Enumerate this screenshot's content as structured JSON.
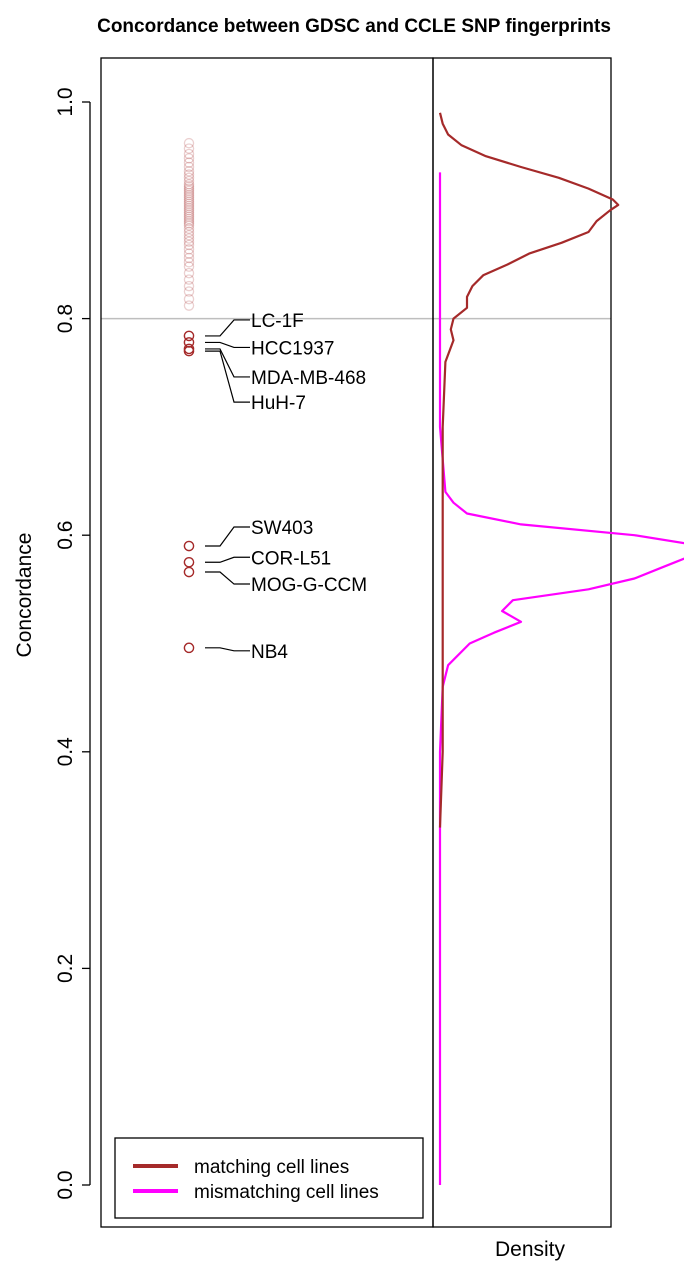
{
  "chart_data": {
    "type": "scatter",
    "title": "Concordance between GDSC and CCLE SNP fingerprints",
    "ylabel": "Concordance",
    "density_xlabel": "Density",
    "ylim": [
      -0.04,
      1.04
    ],
    "yticks": [
      0.0,
      0.2,
      0.4,
      0.6,
      0.8,
      1.0
    ],
    "threshold": 0.8,
    "colors": {
      "matching": "#a52a2a",
      "mismatching": "#ff00ff",
      "threshold": "#bebebe",
      "axis": "#000000"
    },
    "legend": {
      "position": "bottom-left",
      "entries": [
        {
          "key": "matching",
          "label": "matching cell lines"
        },
        {
          "key": "mismatching",
          "label": "mismatching cell lines"
        }
      ]
    },
    "matching_points": [
      0.812,
      0.818,
      0.825,
      0.83,
      0.836,
      0.842,
      0.848,
      0.852,
      0.856,
      0.86,
      0.864,
      0.868,
      0.871,
      0.874,
      0.877,
      0.88,
      0.883,
      0.886,
      0.888,
      0.89,
      0.892,
      0.894,
      0.896,
      0.898,
      0.9,
      0.902,
      0.904,
      0.906,
      0.908,
      0.91,
      0.912,
      0.914,
      0.916,
      0.918,
      0.92,
      0.922,
      0.924,
      0.927,
      0.93,
      0.933,
      0.936,
      0.94,
      0.944,
      0.948,
      0.952,
      0.957,
      0.962
    ],
    "labeled_points": [
      {
        "name": "LC-1F",
        "y": 0.784
      },
      {
        "name": "HCC1937",
        "y": 0.778
      },
      {
        "name": "MDA-MB-468",
        "y": 0.772
      },
      {
        "name": "HuH-7",
        "y": 0.77
      },
      {
        "name": "SW403",
        "y": 0.59
      },
      {
        "name": "COR-L51",
        "y": 0.575
      },
      {
        "name": "MOG-G-CCM",
        "y": 0.566
      },
      {
        "name": "NB4",
        "y": 0.496
      }
    ],
    "density_matching": {
      "y": [
        0.33,
        0.4,
        0.5,
        0.6,
        0.7,
        0.76,
        0.78,
        0.79,
        0.8,
        0.81,
        0.82,
        0.83,
        0.84,
        0.85,
        0.86,
        0.87,
        0.88,
        0.89,
        0.9,
        0.905,
        0.91,
        0.92,
        0.93,
        0.94,
        0.95,
        0.96,
        0.97,
        0.98,
        0.99
      ],
      "density": [
        0.0,
        0.01,
        0.01,
        0.01,
        0.01,
        0.02,
        0.05,
        0.04,
        0.05,
        0.1,
        0.1,
        0.12,
        0.16,
        0.25,
        0.33,
        0.45,
        0.55,
        0.58,
        0.63,
        0.66,
        0.64,
        0.55,
        0.44,
        0.3,
        0.17,
        0.08,
        0.03,
        0.01,
        0.0
      ]
    },
    "density_mismatching": {
      "y": [
        0.0,
        0.2,
        0.4,
        0.46,
        0.48,
        0.5,
        0.51,
        0.52,
        0.53,
        0.54,
        0.55,
        0.56,
        0.57,
        0.575,
        0.58,
        0.59,
        0.6,
        0.61,
        0.62,
        0.63,
        0.64,
        0.7,
        0.8,
        0.9,
        0.935
      ],
      "density": [
        0.0,
        0.0,
        0.0,
        0.01,
        0.03,
        0.11,
        0.2,
        0.3,
        0.23,
        0.27,
        0.55,
        0.72,
        0.82,
        0.87,
        0.92,
        0.97,
        0.72,
        0.3,
        0.1,
        0.05,
        0.02,
        0.0,
        0.0,
        0.0,
        0.0
      ]
    }
  }
}
